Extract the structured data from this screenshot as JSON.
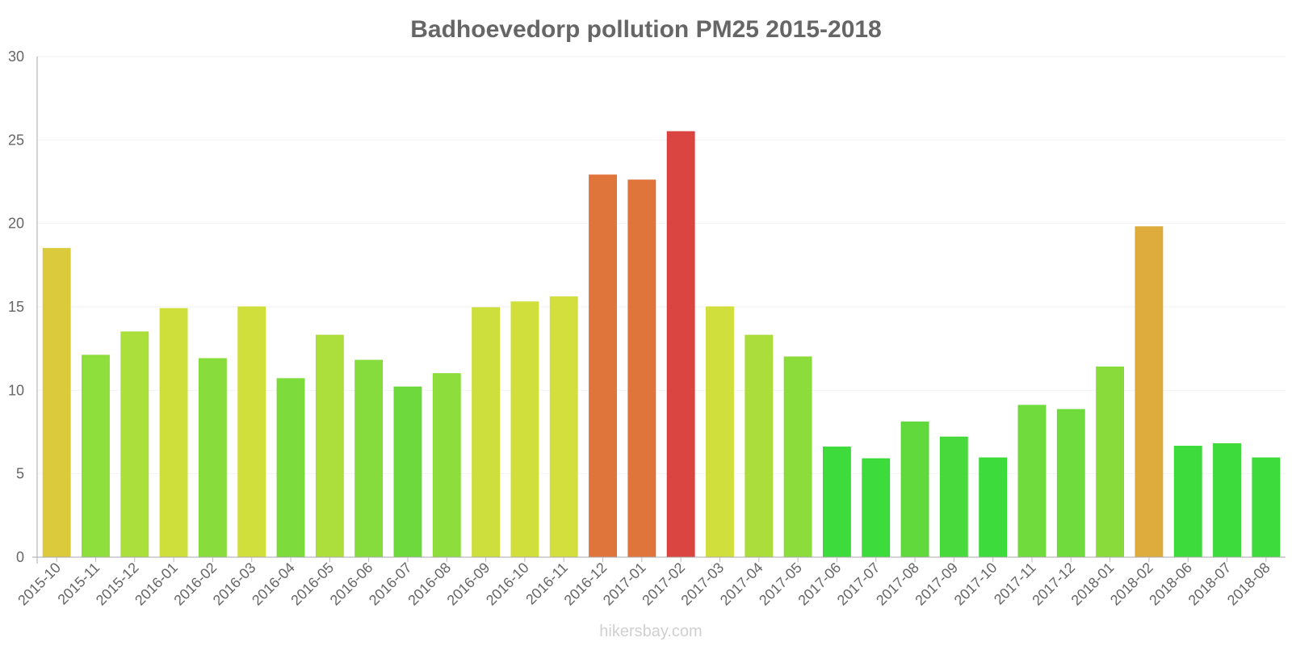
{
  "chart_data": {
    "type": "bar",
    "title": "Badhoevedorp pollution PM25 2015-2018",
    "xlabel": "",
    "ylabel": "",
    "ylim": [
      0,
      30
    ],
    "yticks": [
      0,
      5,
      10,
      15,
      20,
      25,
      30
    ],
    "grid": true,
    "categories": [
      "2015-10",
      "2015-11",
      "2015-12",
      "2016-01",
      "2016-02",
      "2016-03",
      "2016-04",
      "2016-05",
      "2016-06",
      "2016-07",
      "2016-08",
      "2016-09",
      "2016-10",
      "2016-11",
      "2016-12",
      "2017-01",
      "2017-02",
      "2017-03",
      "2017-04",
      "2017-05",
      "2017-06",
      "2017-07",
      "2017-08",
      "2017-09",
      "2017-10",
      "2017-11",
      "2017-12",
      "2018-01",
      "2018-02",
      "2018-06",
      "2018-07",
      "2018-08"
    ],
    "values": [
      18.5,
      12.1,
      13.5,
      14.9,
      11.9,
      15.0,
      10.7,
      13.3,
      11.8,
      10.2,
      11.0,
      14.95,
      15.3,
      15.6,
      22.9,
      22.6,
      25.5,
      15.0,
      13.3,
      12.0,
      6.6,
      5.9,
      8.1,
      7.2,
      5.95,
      9.1,
      8.85,
      11.4,
      19.8,
      6.65,
      6.8,
      5.95
    ],
    "colors": [
      "#d9c832",
      "#88dc32",
      "#a5dd32",
      "#cbdd32",
      "#82db32",
      "#cedd32",
      "#77d932",
      "#a8dc32",
      "#7fda32",
      "#66d732",
      "#87db32",
      "#cadd32",
      "#cfdd32",
      "#d0dd32",
      "#de6e32",
      "#de6e32",
      "#d83a37",
      "#cfdd32",
      "#a6dc32",
      "#86da32",
      "#33d932",
      "#33d932",
      "#58d632",
      "#3ed832",
      "#33d932",
      "#68d932",
      "#68d932",
      "#83d932",
      "#dba832",
      "#33d932",
      "#33d932",
      "#33d932"
    ]
  },
  "watermark": "hikersbay.com"
}
